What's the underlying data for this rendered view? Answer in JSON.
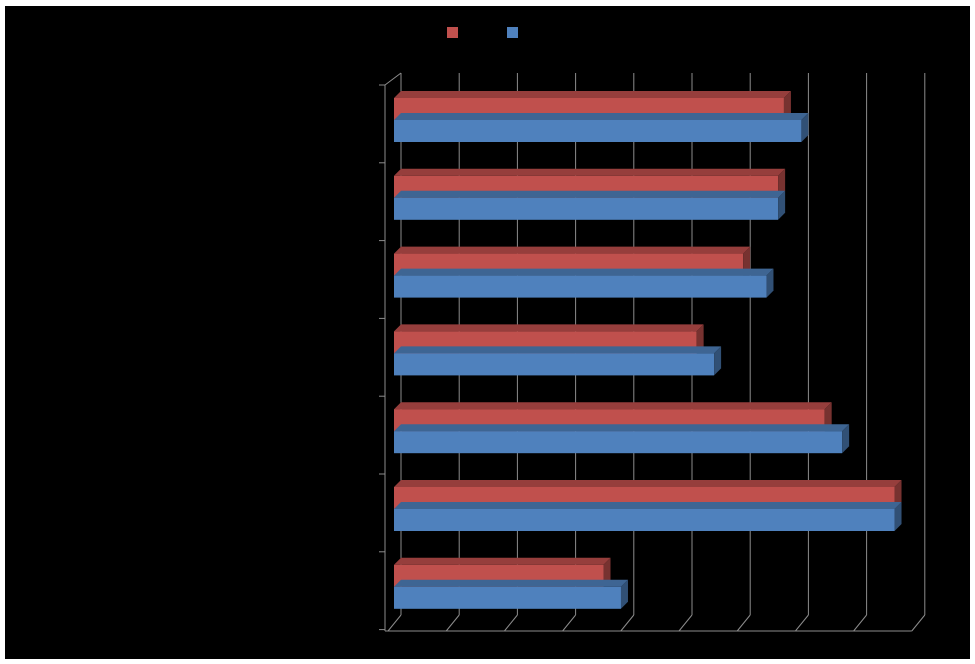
{
  "chart_data": {
    "type": "bar",
    "orientation": "horizontal",
    "style": "3d-clustered",
    "background": "#000000",
    "gridlines": true,
    "legend_position": "top",
    "x_range": [
      0,
      9
    ],
    "categories": [
      "",
      "",
      "",
      "",
      "",
      "",
      ""
    ],
    "series": [
      {
        "color": "#C0504D",
        "values": [
          6.7,
          6.6,
          6.0,
          5.2,
          7.4,
          8.6,
          3.6
        ]
      },
      {
        "color": "#4F81BD",
        "values": [
          7.0,
          6.6,
          6.4,
          5.5,
          7.7,
          8.6,
          3.9
        ]
      }
    ]
  }
}
